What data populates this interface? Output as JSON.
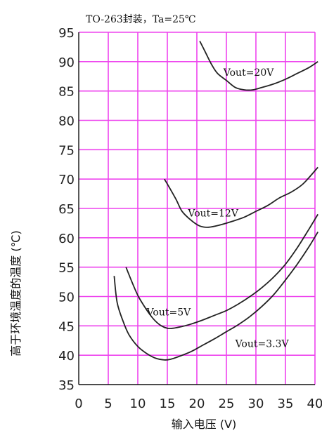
{
  "chart_data": {
    "type": "line",
    "title": "TO-263封装，Ta=25℃",
    "xlabel": "输入电压 (V)",
    "ylabel": "高于环境温度的温度 (℃)",
    "xlim": [
      0,
      40
    ],
    "ylim": [
      35,
      95
    ],
    "xticks": [
      0,
      5,
      10,
      15,
      20,
      25,
      30,
      35,
      40
    ],
    "yticks": [
      35,
      40,
      45,
      50,
      55,
      60,
      65,
      70,
      75,
      80,
      85,
      90,
      95
    ],
    "grid": true,
    "grid_color": "#ee44ee",
    "line_color": "#222222",
    "series": [
      {
        "name": "Vout=20V",
        "x": [
          20.5,
          21.5,
          22.5,
          23.5,
          25,
          26.5,
          28,
          29.5,
          31,
          33,
          35,
          37,
          39,
          40.5
        ],
        "y": [
          93.5,
          91.5,
          89.5,
          88,
          86.8,
          85.6,
          85.2,
          85.2,
          85.6,
          86.2,
          87,
          88,
          89,
          90
        ]
      },
      {
        "name": "Vout=12V",
        "x": [
          14.5,
          15.5,
          16.5,
          17.5,
          19,
          20.5,
          22,
          24,
          26,
          28,
          30,
          32,
          34,
          36,
          38,
          40.5
        ],
        "y": [
          70,
          68.3,
          66.5,
          64.5,
          63,
          62,
          61.8,
          62.2,
          62.8,
          63.5,
          64.5,
          65.5,
          66.8,
          67.8,
          69.2,
          72
        ]
      },
      {
        "name": "Vout=5V",
        "x": [
          8,
          9,
          10,
          11,
          12,
          13,
          14,
          15,
          16,
          17.5,
          19,
          21,
          23,
          25,
          27,
          29,
          31,
          33,
          35,
          37,
          39,
          40.5
        ],
        "y": [
          55,
          52.5,
          50.2,
          48.5,
          47,
          45.8,
          45,
          44.6,
          44.6,
          44.9,
          45.3,
          46,
          46.8,
          47.6,
          48.7,
          50,
          51.5,
          53.3,
          55.5,
          58.3,
          61.5,
          64
        ]
      },
      {
        "name": "Vout=3.3V",
        "x": [
          6,
          6.5,
          7.5,
          8.5,
          10,
          11.5,
          13,
          14.5,
          15.5,
          17,
          19,
          21,
          23,
          25,
          27,
          29,
          31,
          33,
          35,
          37,
          39,
          40.5
        ],
        "y": [
          53.5,
          49,
          45.8,
          43.5,
          41.5,
          40.3,
          39.5,
          39.2,
          39.3,
          39.8,
          40.6,
          41.7,
          42.8,
          44,
          45.2,
          46.6,
          48.3,
          50.3,
          52.8,
          55.5,
          58.5,
          61
        ]
      }
    ],
    "annotations": [
      {
        "text": "Vout=20V",
        "x": 24.5,
        "y": 87.6
      },
      {
        "text": "Vout=12V",
        "x": 18.5,
        "y": 63.6
      },
      {
        "text": "Vout=5V",
        "x": 11.5,
        "y": 46.8
      },
      {
        "text": "Vout=3.3V",
        "x": 26.5,
        "y": 41.4
      }
    ]
  }
}
